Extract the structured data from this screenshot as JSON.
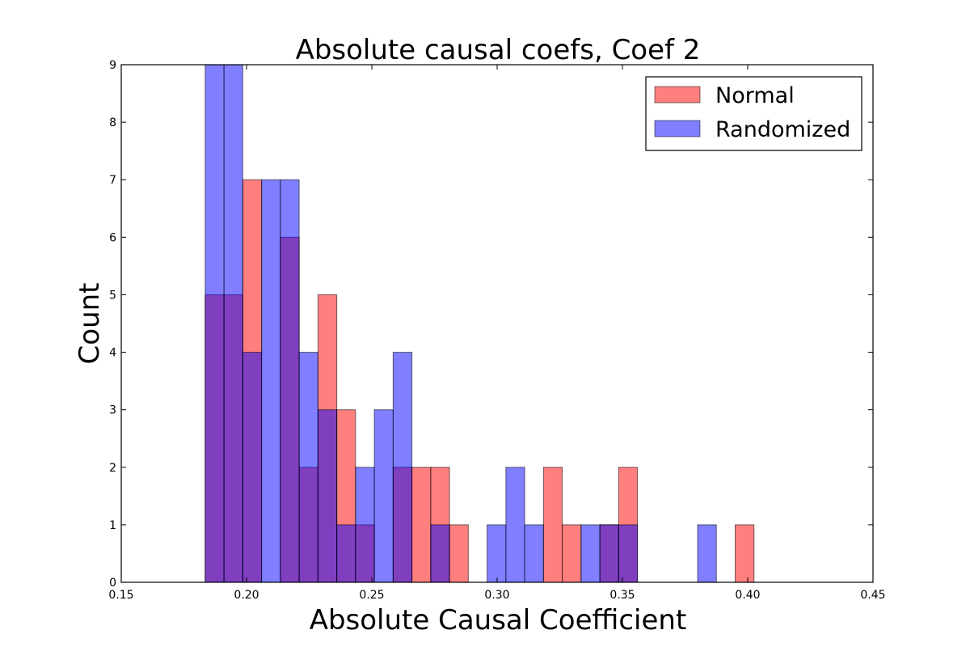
{
  "chart_data": {
    "type": "bar",
    "title": "Absolute causal coefs, Coef 2",
    "xlabel": "Absolute Causal Coefficient",
    "ylabel": "Count",
    "xlim": [
      0.15,
      0.45
    ],
    "ylim": [
      0,
      9
    ],
    "xticks": [
      "0.15",
      "0.20",
      "0.25",
      "0.30",
      "0.35",
      "0.40",
      "0.45"
    ],
    "yticks": [
      "0",
      "1",
      "2",
      "3",
      "4",
      "5",
      "6",
      "7",
      "8",
      "9"
    ],
    "grid": false,
    "legend_position": "top-right",
    "colors": {
      "Normal": "#ff0000",
      "Randomized": "#0000ff",
      "overlap": "#800080"
    },
    "series": [
      {
        "name": "Normal",
        "bins": [
          {
            "x0": 0.1835,
            "x1": 0.191,
            "count": 5
          },
          {
            "x0": 0.191,
            "x1": 0.1985,
            "count": 5
          },
          {
            "x0": 0.1985,
            "x1": 0.206,
            "count": 7
          },
          {
            "x0": 0.2135,
            "x1": 0.221,
            "count": 6
          },
          {
            "x0": 0.221,
            "x1": 0.2285,
            "count": 2
          },
          {
            "x0": 0.2285,
            "x1": 0.236,
            "count": 5
          },
          {
            "x0": 0.236,
            "x1": 0.2435,
            "count": 3
          },
          {
            "x0": 0.2435,
            "x1": 0.251,
            "count": 1
          },
          {
            "x0": 0.2585,
            "x1": 0.266,
            "count": 2
          },
          {
            "x0": 0.266,
            "x1": 0.2735,
            "count": 2
          },
          {
            "x0": 0.2735,
            "x1": 0.281,
            "count": 2
          },
          {
            "x0": 0.281,
            "x1": 0.2885,
            "count": 1
          },
          {
            "x0": 0.3185,
            "x1": 0.326,
            "count": 2
          },
          {
            "x0": 0.326,
            "x1": 0.3335,
            "count": 1
          },
          {
            "x0": 0.341,
            "x1": 0.3485,
            "count": 1
          },
          {
            "x0": 0.3485,
            "x1": 0.356,
            "count": 2
          },
          {
            "x0": 0.395,
            "x1": 0.4025,
            "count": 1
          }
        ]
      },
      {
        "name": "Randomized",
        "bins": [
          {
            "x0": 0.1835,
            "x1": 0.191,
            "count": 9
          },
          {
            "x0": 0.191,
            "x1": 0.1985,
            "count": 9
          },
          {
            "x0": 0.1985,
            "x1": 0.206,
            "count": 4
          },
          {
            "x0": 0.206,
            "x1": 0.2135,
            "count": 7
          },
          {
            "x0": 0.2135,
            "x1": 0.221,
            "count": 7
          },
          {
            "x0": 0.221,
            "x1": 0.2285,
            "count": 4
          },
          {
            "x0": 0.2285,
            "x1": 0.236,
            "count": 3
          },
          {
            "x0": 0.236,
            "x1": 0.2435,
            "count": 1
          },
          {
            "x0": 0.2435,
            "x1": 0.251,
            "count": 2
          },
          {
            "x0": 0.251,
            "x1": 0.2585,
            "count": 3
          },
          {
            "x0": 0.2585,
            "x1": 0.266,
            "count": 4
          },
          {
            "x0": 0.2735,
            "x1": 0.281,
            "count": 1
          },
          {
            "x0": 0.296,
            "x1": 0.3035,
            "count": 1
          },
          {
            "x0": 0.3035,
            "x1": 0.311,
            "count": 2
          },
          {
            "x0": 0.311,
            "x1": 0.3185,
            "count": 1
          },
          {
            "x0": 0.3335,
            "x1": 0.341,
            "count": 1
          },
          {
            "x0": 0.341,
            "x1": 0.3485,
            "count": 1
          },
          {
            "x0": 0.3485,
            "x1": 0.356,
            "count": 1
          },
          {
            "x0": 0.38,
            "x1": 0.3875,
            "count": 1
          }
        ]
      }
    ]
  }
}
